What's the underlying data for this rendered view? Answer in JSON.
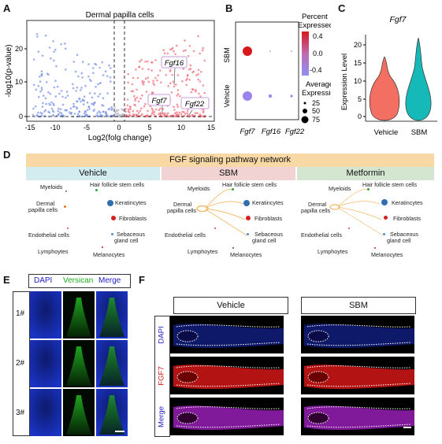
{
  "panels": {
    "A": "A",
    "B": "B",
    "C": "C",
    "D": "D",
    "E": "E",
    "F": "F"
  },
  "panel_a": {
    "title": "Dermal papilla cells",
    "ylabel": "-log10(p-value)",
    "xlabel": "Log2(folg change)",
    "genes": [
      "Fgf16",
      "Fgf7",
      "Fgf22"
    ],
    "colors": {
      "down": "#7f95e6",
      "up": "#f3737f",
      "ns": "#b8b8c8"
    }
  },
  "panel_b": {
    "rows": [
      "SBM",
      "Vehicle"
    ],
    "cols": [
      "Fgf7",
      "Fgf16",
      "Fgf22"
    ],
    "legend_color_title": [
      "Percent",
      "Expressed"
    ],
    "legend_color_ticks": [
      "0.4",
      "0.0",
      "-0.4"
    ],
    "legend_size_title": [
      "Average",
      "Expression"
    ],
    "legend_size_ticks": [
      "25",
      "50",
      "75"
    ],
    "colors": {
      "high": "#d7191c",
      "mid": "#b06ab3",
      "low": "#8f8ff0"
    }
  },
  "panel_c": {
    "title": "Fgf7",
    "ylabel": "Expression Level",
    "colors": {
      "Vehicle": "#f36f61",
      "SBM": "#14b9b8"
    }
  },
  "panel_d": {
    "title": "FGF signaling pathway network",
    "panels": [
      {
        "name": "Vehicle",
        "head_color": "#d3ecef"
      },
      {
        "name": "SBM",
        "head_color": "#f1d3d3"
      },
      {
        "name": "Metformin",
        "head_color": "#d4e5d0"
      }
    ],
    "nodes": {
      "hfsc": "Hair follicle stem cells",
      "myeloids": "Myeloids",
      "dp_line1": "Dermal",
      "dp_line2": "papilla cells",
      "kera": "Keratincytes",
      "fibro": "Fibroblasts",
      "endo": "Endothelial cells",
      "seb_line1": "Sebaceous",
      "seb_line2": "gland cell",
      "lympho": "Lymphoytes",
      "melano": "Melanocytes"
    },
    "edge_color": "#f5b96a"
  },
  "panel_e": {
    "channels": [
      "DAPI",
      "Versican",
      "Merge"
    ],
    "rows": [
      "1#",
      "2#",
      "3#"
    ]
  },
  "panel_f": {
    "conditions": [
      "Vehicle",
      "SBM"
    ],
    "channels": [
      "DAPI",
      "FGF7",
      "Merge"
    ]
  }
}
